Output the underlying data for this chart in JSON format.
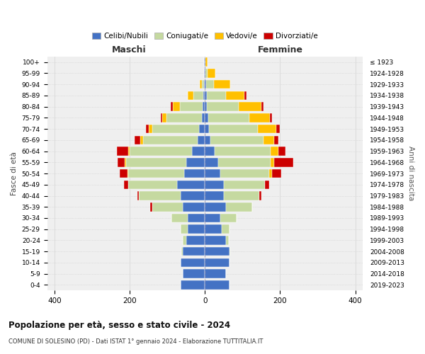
{
  "age_groups": [
    "0-4",
    "5-9",
    "10-14",
    "15-19",
    "20-24",
    "25-29",
    "30-34",
    "35-39",
    "40-44",
    "45-49",
    "50-54",
    "55-59",
    "60-64",
    "65-69",
    "70-74",
    "75-79",
    "80-84",
    "85-89",
    "90-94",
    "95-99",
    "100+"
  ],
  "birth_years": [
    "2019-2023",
    "2014-2018",
    "2009-2013",
    "2004-2008",
    "1999-2003",
    "1994-1998",
    "1989-1993",
    "1984-1988",
    "1979-1983",
    "1974-1978",
    "1969-1973",
    "1964-1968",
    "1959-1963",
    "1954-1958",
    "1949-1953",
    "1944-1948",
    "1939-1943",
    "1934-1938",
    "1929-1933",
    "1924-1928",
    "≤ 1923"
  ],
  "colors": {
    "celibi": "#4472c4",
    "coniugati": "#c5d9a0",
    "vedovi": "#ffc000",
    "divorziati": "#cc0000"
  },
  "maschi": {
    "celibi": [
      65,
      60,
      65,
      60,
      50,
      45,
      45,
      60,
      65,
      75,
      55,
      50,
      35,
      20,
      15,
      8,
      6,
      5,
      3,
      2,
      2
    ],
    "coniugati": [
      0,
      0,
      0,
      2,
      10,
      20,
      45,
      80,
      110,
      130,
      150,
      160,
      165,
      145,
      125,
      95,
      60,
      25,
      5,
      0,
      0
    ],
    "vedovi": [
      0,
      0,
      0,
      0,
      0,
      0,
      0,
      0,
      0,
      0,
      2,
      3,
      5,
      8,
      10,
      10,
      20,
      15,
      5,
      0,
      0
    ],
    "divorziati": [
      0,
      0,
      0,
      0,
      0,
      0,
      0,
      5,
      5,
      10,
      20,
      20,
      30,
      15,
      8,
      5,
      5,
      0,
      0,
      0,
      0
    ]
  },
  "femmine": {
    "celibi": [
      65,
      55,
      65,
      65,
      55,
      45,
      40,
      55,
      50,
      50,
      40,
      35,
      25,
      15,
      10,
      8,
      5,
      5,
      3,
      2,
      2
    ],
    "coniugati": [
      0,
      0,
      0,
      2,
      8,
      20,
      45,
      70,
      95,
      110,
      130,
      140,
      150,
      140,
      130,
      110,
      85,
      50,
      20,
      5,
      0
    ],
    "vedovi": [
      0,
      0,
      0,
      0,
      0,
      0,
      0,
      0,
      0,
      0,
      8,
      10,
      20,
      30,
      50,
      55,
      60,
      50,
      45,
      20,
      5
    ],
    "divorziati": [
      0,
      0,
      0,
      0,
      0,
      0,
      0,
      0,
      5,
      10,
      25,
      50,
      20,
      10,
      10,
      5,
      5,
      5,
      0,
      0,
      0
    ]
  },
  "xlim": 420,
  "title": "Popolazione per età, sesso e stato civile - 2024",
  "subtitle": "COMUNE DI SOLESINO (PD) - Dati ISTAT 1° gennaio 2024 - Elaborazione TUTTITALIA.IT",
  "xlabel_left": "Maschi",
  "xlabel_right": "Femmine",
  "ylabel": "Fasce di età",
  "ylabel_right": "Anni di nascita",
  "legend_labels": [
    "Celibi/Nubili",
    "Coniugati/e",
    "Vedovi/e",
    "Divorziati/e"
  ],
  "background_color": "#ffffff",
  "bg_axes": "#efefef"
}
